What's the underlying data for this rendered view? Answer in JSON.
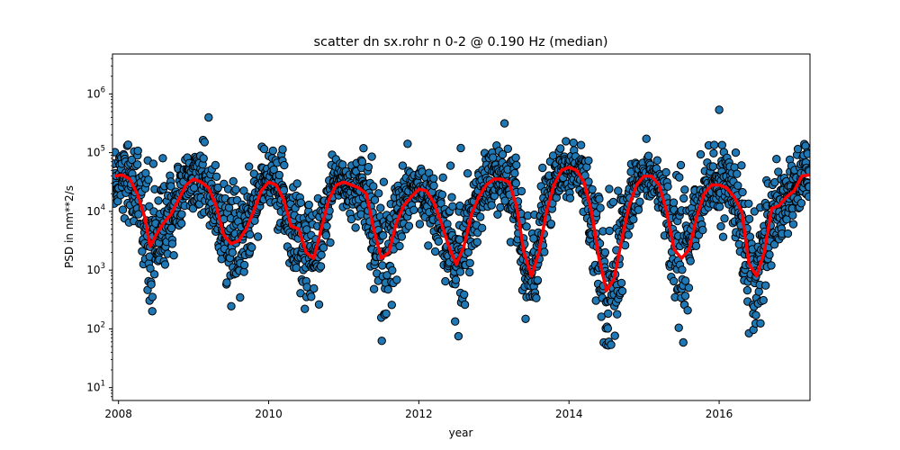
{
  "chart_data": {
    "type": "scatter",
    "title": "scatter dn sx.rohr n 0-2 @ 0.190 Hz (median)",
    "xlabel": "year",
    "ylabel": "PSD in nm**2/s",
    "xlim": [
      2007.92,
      2017.21
    ],
    "ylim_log10": [
      0.78,
      6.68
    ],
    "y_scale": "log",
    "x_ticks": [
      2008,
      2010,
      2012,
      2014,
      2016
    ],
    "x_tick_labels": [
      "2008",
      "2010",
      "2012",
      "2014",
      "2016"
    ],
    "y_ticks_log10": [
      1,
      2,
      3,
      4,
      5,
      6
    ],
    "grid": false,
    "legend": "none",
    "marker_color": "#1f77b4",
    "marker_edge_color": "#000000",
    "median_line_color": "#ff0000",
    "median_curve": {
      "name": "median",
      "x": [
        2007.95,
        2008.05,
        2008.15,
        2008.25,
        2008.35,
        2008.42,
        2008.5,
        2008.6,
        2008.7,
        2008.8,
        2008.9,
        2009.0,
        2009.1,
        2009.2,
        2009.3,
        2009.4,
        2009.5,
        2009.6,
        2009.7,
        2009.8,
        2009.9,
        2010.0,
        2010.1,
        2010.2,
        2010.3,
        2010.4,
        2010.5,
        2010.6,
        2010.7,
        2010.8,
        2010.9,
        2011.0,
        2011.1,
        2011.2,
        2011.3,
        2011.4,
        2011.5,
        2011.6,
        2011.7,
        2011.8,
        2011.9,
        2012.0,
        2012.1,
        2012.2,
        2012.3,
        2012.4,
        2012.5,
        2012.6,
        2012.7,
        2012.8,
        2012.9,
        2013.0,
        2013.1,
        2013.2,
        2013.3,
        2013.4,
        2013.5,
        2013.6,
        2013.7,
        2013.8,
        2013.9,
        2014.0,
        2014.1,
        2014.2,
        2014.3,
        2014.4,
        2014.5,
        2014.6,
        2014.7,
        2014.8,
        2014.9,
        2015.0,
        2015.1,
        2015.2,
        2015.3,
        2015.4,
        2015.5,
        2015.6,
        2015.7,
        2015.8,
        2015.9,
        2016.0,
        2016.1,
        2016.2,
        2016.3,
        2016.4,
        2016.5,
        2016.6,
        2016.7,
        2016.8,
        2016.9,
        2017.0,
        2017.1,
        2017.2
      ],
      "y_log10": [
        4.6,
        4.62,
        4.55,
        4.3,
        3.9,
        3.4,
        3.6,
        3.8,
        3.95,
        4.2,
        4.45,
        4.55,
        4.5,
        4.4,
        4.1,
        3.6,
        3.45,
        3.5,
        3.7,
        4.0,
        4.35,
        4.5,
        4.45,
        4.2,
        3.75,
        3.7,
        3.3,
        3.2,
        3.7,
        4.2,
        4.45,
        4.5,
        4.45,
        4.4,
        4.3,
        3.7,
        3.2,
        3.3,
        3.8,
        4.1,
        4.25,
        4.38,
        4.35,
        4.15,
        3.8,
        3.4,
        3.1,
        3.4,
        3.95,
        4.25,
        4.45,
        4.55,
        4.55,
        4.5,
        4.1,
        3.3,
        2.9,
        3.3,
        4.0,
        4.45,
        4.7,
        4.75,
        4.7,
        4.5,
        4.0,
        3.2,
        2.65,
        2.85,
        3.5,
        4.1,
        4.45,
        4.6,
        4.6,
        4.45,
        4.0,
        3.35,
        3.2,
        3.35,
        3.9,
        4.3,
        4.45,
        4.45,
        4.4,
        4.25,
        4.0,
        3.1,
        2.9,
        3.3,
        4.05,
        4.1,
        4.25,
        4.35,
        4.6,
        4.62
      ]
    },
    "scatter_spread_log10": [
      0.55,
      0.6,
      0.7,
      0.8,
      1.0,
      1.15,
      1.0,
      0.85,
      0.7,
      0.6,
      0.55,
      0.5,
      0.55,
      0.6,
      0.8,
      1.0,
      1.1,
      1.0,
      0.8,
      0.6,
      0.55,
      0.55,
      0.6,
      0.75,
      0.9,
      1.0,
      1.1,
      1.1,
      0.8,
      0.6,
      0.55,
      0.55,
      0.55,
      0.6,
      0.7,
      0.9,
      1.1,
      1.05,
      0.8,
      0.6,
      0.55,
      0.5,
      0.55,
      0.65,
      0.8,
      0.95,
      1.1,
      1.0,
      0.7,
      0.6,
      0.55,
      0.55,
      0.6,
      0.6,
      0.8,
      1.0,
      1.1,
      1.0,
      0.75,
      0.55,
      0.5,
      0.5,
      0.55,
      0.6,
      0.8,
      1.05,
      1.2,
      1.1,
      0.85,
      0.6,
      0.5,
      0.5,
      0.55,
      0.6,
      0.8,
      1.0,
      1.1,
      1.05,
      0.75,
      0.6,
      0.55,
      0.6,
      0.6,
      0.65,
      0.8,
      1.1,
      1.3,
      1.1,
      0.8,
      0.6,
      0.55,
      0.55,
      0.55,
      0.55
    ],
    "scatter_outliers": [
      {
        "x": 2009.2,
        "y_log10": 5.6
      },
      {
        "x": 2016.0,
        "y_log10": 5.73
      },
      {
        "x": 2008.45,
        "y_log10": 2.3
      },
      {
        "x": 2011.85,
        "y_log10": 5.15
      }
    ]
  }
}
